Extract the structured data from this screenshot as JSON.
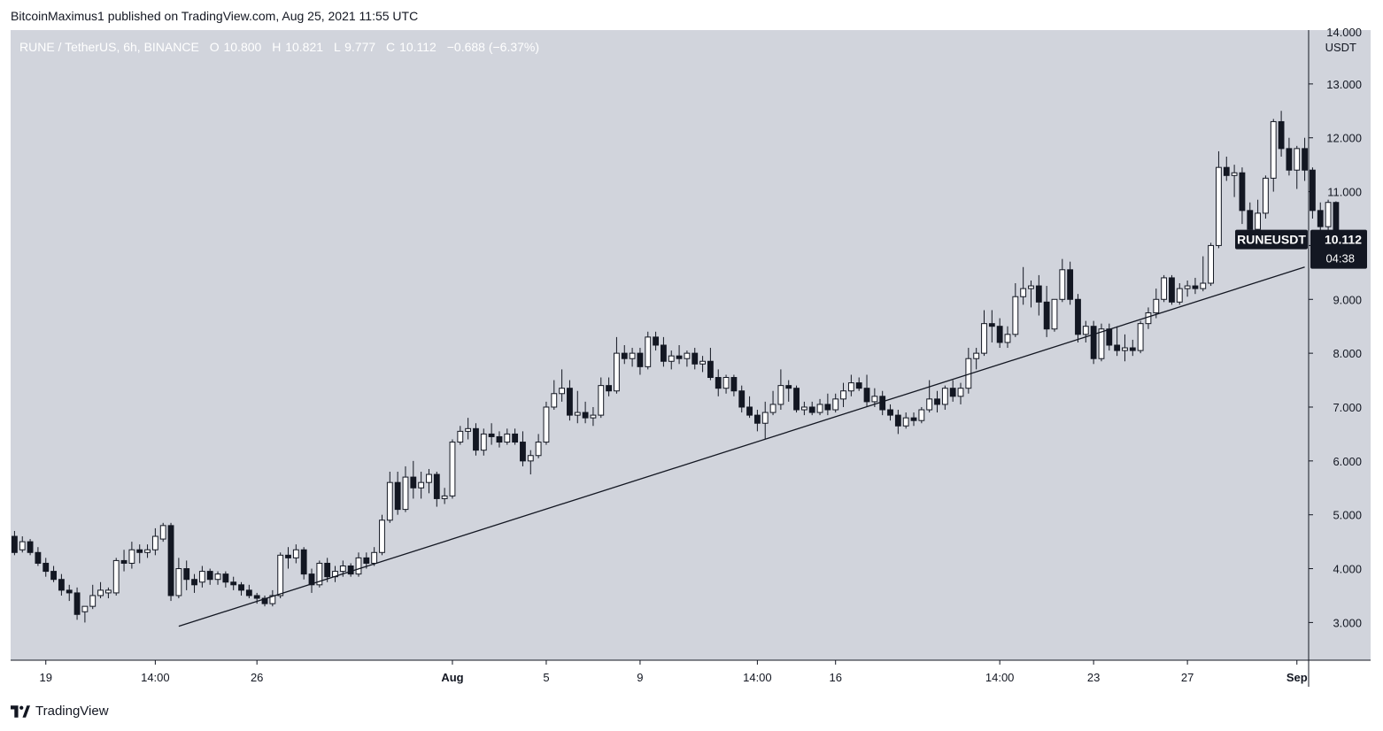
{
  "header": {
    "published_line": "BitcoinMaximus1 published on TradingView.com, Aug 25, 2021 11:55 UTC"
  },
  "legend": {
    "pair": "RUNE / TetherUS, 6h, BINANCE",
    "o_label": "O",
    "o_value": "10.800",
    "h_label": "H",
    "h_value": "10.821",
    "l_label": "L",
    "l_value": "9.777",
    "c_label": "C",
    "c_value": "10.112",
    "change": "−0.688 (−6.37%)"
  },
  "price_axis": {
    "currency": "USDT",
    "top_partial_label": "14.000"
  },
  "price_tag": {
    "symbol": "RUNEUSDT",
    "price": "10.112",
    "countdown": "04:38"
  },
  "footer": {
    "brand": "TradingView",
    "logo_icon": "tradingview-logo-icon"
  },
  "colors": {
    "plot_background": "#d1d4dc",
    "up_candle_fill": "#ffffff",
    "down_candle_fill": "#131722",
    "wick": "#131722",
    "trendline": "#131722",
    "price_tag_bg": "#131722"
  },
  "chart_data": {
    "type": "candlestick",
    "symbol": "RUNE / TetherUS",
    "interval": "6h",
    "exchange": "BINANCE",
    "ylim": [
      2.3,
      14.0
    ],
    "y_ticks": [
      "3.000",
      "4.000",
      "5.000",
      "6.000",
      "7.000",
      "8.000",
      "9.000",
      "10.000",
      "11.000",
      "12.000",
      "13.000"
    ],
    "x_ticks": [
      "19",
      "14:00",
      "26",
      "Aug",
      "5",
      "9",
      "14:00",
      "16",
      "14:00",
      "23",
      "27",
      "Sep"
    ],
    "x_tick_bars": [
      4,
      18,
      31,
      56,
      68,
      80,
      95,
      105,
      126,
      138,
      150,
      164
    ],
    "total_bar_slots": 166,
    "bold_ticks": [
      "Aug",
      "Sep"
    ],
    "grid": false,
    "candles": [
      {
        "o": 4.6,
        "h": 4.7,
        "l": 4.25,
        "c": 4.3
      },
      {
        "o": 4.35,
        "h": 4.6,
        "l": 4.3,
        "c": 4.5
      },
      {
        "o": 4.5,
        "h": 4.55,
        "l": 4.25,
        "c": 4.3
      },
      {
        "o": 4.3,
        "h": 4.4,
        "l": 4.05,
        "c": 4.1
      },
      {
        "o": 4.1,
        "h": 4.2,
        "l": 3.85,
        "c": 3.95
      },
      {
        "o": 3.95,
        "h": 4.05,
        "l": 3.75,
        "c": 3.8
      },
      {
        "o": 3.8,
        "h": 3.9,
        "l": 3.5,
        "c": 3.6
      },
      {
        "o": 3.6,
        "h": 3.7,
        "l": 3.4,
        "c": 3.55
      },
      {
        "o": 3.55,
        "h": 3.65,
        "l": 3.05,
        "c": 3.15
      },
      {
        "o": 3.2,
        "h": 3.3,
        "l": 3.0,
        "c": 3.3
      },
      {
        "o": 3.3,
        "h": 3.7,
        "l": 3.25,
        "c": 3.5
      },
      {
        "o": 3.5,
        "h": 3.75,
        "l": 3.45,
        "c": 3.6
      },
      {
        "o": 3.55,
        "h": 3.65,
        "l": 3.45,
        "c": 3.6
      },
      {
        "o": 3.55,
        "h": 4.2,
        "l": 3.5,
        "c": 4.15
      },
      {
        "o": 4.15,
        "h": 4.35,
        "l": 3.95,
        "c": 4.1
      },
      {
        "o": 4.1,
        "h": 4.5,
        "l": 4.0,
        "c": 4.35
      },
      {
        "o": 4.35,
        "h": 4.45,
        "l": 4.1,
        "c": 4.3
      },
      {
        "o": 4.3,
        "h": 4.45,
        "l": 4.2,
        "c": 4.35
      },
      {
        "o": 4.35,
        "h": 4.75,
        "l": 4.25,
        "c": 4.6
      },
      {
        "o": 4.55,
        "h": 4.85,
        "l": 4.5,
        "c": 4.8
      },
      {
        "o": 4.8,
        "h": 4.85,
        "l": 3.4,
        "c": 3.5
      },
      {
        "o": 3.5,
        "h": 4.2,
        "l": 3.45,
        "c": 4.0
      },
      {
        "o": 4.0,
        "h": 4.15,
        "l": 3.6,
        "c": 3.8
      },
      {
        "o": 3.8,
        "h": 3.9,
        "l": 3.55,
        "c": 3.7
      },
      {
        "o": 3.75,
        "h": 4.05,
        "l": 3.65,
        "c": 3.95
      },
      {
        "o": 3.95,
        "h": 4.0,
        "l": 3.7,
        "c": 3.8
      },
      {
        "o": 3.8,
        "h": 3.95,
        "l": 3.7,
        "c": 3.9
      },
      {
        "o": 3.9,
        "h": 3.95,
        "l": 3.65,
        "c": 3.75
      },
      {
        "o": 3.75,
        "h": 3.85,
        "l": 3.6,
        "c": 3.7
      },
      {
        "o": 3.7,
        "h": 3.75,
        "l": 3.5,
        "c": 3.6
      },
      {
        "o": 3.6,
        "h": 3.7,
        "l": 3.45,
        "c": 3.5
      },
      {
        "o": 3.5,
        "h": 3.55,
        "l": 3.35,
        "c": 3.45
      },
      {
        "o": 3.45,
        "h": 3.5,
        "l": 3.3,
        "c": 3.35
      },
      {
        "o": 3.35,
        "h": 3.6,
        "l": 3.3,
        "c": 3.5
      },
      {
        "o": 3.5,
        "h": 4.3,
        "l": 3.45,
        "c": 4.25
      },
      {
        "o": 4.25,
        "h": 4.4,
        "l": 4.0,
        "c": 4.2
      },
      {
        "o": 4.2,
        "h": 4.45,
        "l": 4.1,
        "c": 4.35
      },
      {
        "o": 4.35,
        "h": 4.4,
        "l": 3.8,
        "c": 3.9
      },
      {
        "o": 3.9,
        "h": 4.0,
        "l": 3.55,
        "c": 3.7
      },
      {
        "o": 3.7,
        "h": 4.15,
        "l": 3.65,
        "c": 4.1
      },
      {
        "o": 4.1,
        "h": 4.2,
        "l": 3.75,
        "c": 3.85
      },
      {
        "o": 3.85,
        "h": 4.05,
        "l": 3.75,
        "c": 3.95
      },
      {
        "o": 3.95,
        "h": 4.15,
        "l": 3.85,
        "c": 4.05
      },
      {
        "o": 4.05,
        "h": 4.1,
        "l": 3.85,
        "c": 3.9
      },
      {
        "o": 3.9,
        "h": 4.3,
        "l": 3.85,
        "c": 4.2
      },
      {
        "o": 4.2,
        "h": 4.3,
        "l": 4.0,
        "c": 4.1
      },
      {
        "o": 4.1,
        "h": 4.4,
        "l": 4.05,
        "c": 4.3
      },
      {
        "o": 4.3,
        "h": 5.0,
        "l": 4.25,
        "c": 4.9
      },
      {
        "o": 4.9,
        "h": 5.8,
        "l": 4.85,
        "c": 5.6
      },
      {
        "o": 5.6,
        "h": 5.8,
        "l": 5.0,
        "c": 5.1
      },
      {
        "o": 5.1,
        "h": 5.9,
        "l": 5.05,
        "c": 5.7
      },
      {
        "o": 5.7,
        "h": 6.0,
        "l": 5.3,
        "c": 5.5
      },
      {
        "o": 5.5,
        "h": 5.8,
        "l": 5.3,
        "c": 5.6
      },
      {
        "o": 5.6,
        "h": 5.85,
        "l": 5.4,
        "c": 5.75
      },
      {
        "o": 5.75,
        "h": 5.8,
        "l": 5.15,
        "c": 5.3
      },
      {
        "o": 5.3,
        "h": 5.5,
        "l": 5.2,
        "c": 5.35
      },
      {
        "o": 5.35,
        "h": 6.4,
        "l": 5.3,
        "c": 6.35
      },
      {
        "o": 6.35,
        "h": 6.65,
        "l": 6.3,
        "c": 6.55
      },
      {
        "o": 6.55,
        "h": 6.8,
        "l": 6.4,
        "c": 6.6
      },
      {
        "o": 6.6,
        "h": 6.7,
        "l": 6.1,
        "c": 6.2
      },
      {
        "o": 6.2,
        "h": 6.6,
        "l": 6.1,
        "c": 6.5
      },
      {
        "o": 6.5,
        "h": 6.7,
        "l": 6.3,
        "c": 6.45
      },
      {
        "o": 6.45,
        "h": 6.55,
        "l": 6.25,
        "c": 6.35
      },
      {
        "o": 6.35,
        "h": 6.6,
        "l": 6.3,
        "c": 6.5
      },
      {
        "o": 6.5,
        "h": 6.6,
        "l": 6.3,
        "c": 6.35
      },
      {
        "o": 6.35,
        "h": 6.55,
        "l": 5.9,
        "c": 6.0
      },
      {
        "o": 6.0,
        "h": 6.2,
        "l": 5.75,
        "c": 6.1
      },
      {
        "o": 6.1,
        "h": 6.5,
        "l": 6.05,
        "c": 6.35
      },
      {
        "o": 6.35,
        "h": 7.1,
        "l": 6.3,
        "c": 7.0
      },
      {
        "o": 7.0,
        "h": 7.5,
        "l": 6.95,
        "c": 7.25
      },
      {
        "o": 7.25,
        "h": 7.7,
        "l": 7.1,
        "c": 7.35
      },
      {
        "o": 7.35,
        "h": 7.5,
        "l": 6.75,
        "c": 6.85
      },
      {
        "o": 6.85,
        "h": 7.3,
        "l": 6.7,
        "c": 6.9
      },
      {
        "o": 6.9,
        "h": 7.1,
        "l": 6.7,
        "c": 6.8
      },
      {
        "o": 6.8,
        "h": 7.0,
        "l": 6.65,
        "c": 6.85
      },
      {
        "o": 6.85,
        "h": 7.55,
        "l": 6.8,
        "c": 7.4
      },
      {
        "o": 7.4,
        "h": 7.55,
        "l": 7.2,
        "c": 7.3
      },
      {
        "o": 7.3,
        "h": 8.3,
        "l": 7.25,
        "c": 8.0
      },
      {
        "o": 8.0,
        "h": 8.15,
        "l": 7.8,
        "c": 7.9
      },
      {
        "o": 7.9,
        "h": 8.1,
        "l": 7.75,
        "c": 8.0
      },
      {
        "o": 8.0,
        "h": 8.1,
        "l": 7.6,
        "c": 7.75
      },
      {
        "o": 7.75,
        "h": 8.4,
        "l": 7.7,
        "c": 8.3
      },
      {
        "o": 8.3,
        "h": 8.4,
        "l": 8.05,
        "c": 8.15
      },
      {
        "o": 8.15,
        "h": 8.3,
        "l": 7.75,
        "c": 7.85
      },
      {
        "o": 7.85,
        "h": 8.05,
        "l": 7.7,
        "c": 7.95
      },
      {
        "o": 7.95,
        "h": 8.15,
        "l": 7.8,
        "c": 7.9
      },
      {
        "o": 7.9,
        "h": 8.05,
        "l": 7.75,
        "c": 8.0
      },
      {
        "o": 8.0,
        "h": 8.1,
        "l": 7.7,
        "c": 7.8
      },
      {
        "o": 7.8,
        "h": 7.95,
        "l": 7.65,
        "c": 7.85
      },
      {
        "o": 7.85,
        "h": 8.1,
        "l": 7.5,
        "c": 7.55
      },
      {
        "o": 7.55,
        "h": 7.7,
        "l": 7.2,
        "c": 7.35
      },
      {
        "o": 7.35,
        "h": 7.6,
        "l": 7.25,
        "c": 7.55
      },
      {
        "o": 7.55,
        "h": 7.6,
        "l": 7.2,
        "c": 7.3
      },
      {
        "o": 7.3,
        "h": 7.4,
        "l": 6.9,
        "c": 7.0
      },
      {
        "o": 7.0,
        "h": 7.2,
        "l": 6.8,
        "c": 6.85
      },
      {
        "o": 6.85,
        "h": 6.95,
        "l": 6.55,
        "c": 6.7
      },
      {
        "o": 6.7,
        "h": 7.1,
        "l": 6.4,
        "c": 6.9
      },
      {
        "o": 6.9,
        "h": 7.3,
        "l": 6.85,
        "c": 7.05
      },
      {
        "o": 7.05,
        "h": 7.7,
        "l": 6.95,
        "c": 7.4
      },
      {
        "o": 7.4,
        "h": 7.5,
        "l": 7.1,
        "c": 7.35
      },
      {
        "o": 7.35,
        "h": 7.4,
        "l": 6.9,
        "c": 6.95
      },
      {
        "o": 6.95,
        "h": 7.1,
        "l": 6.85,
        "c": 7.0
      },
      {
        "o": 7.0,
        "h": 7.1,
        "l": 6.85,
        "c": 6.9
      },
      {
        "o": 6.9,
        "h": 7.15,
        "l": 6.85,
        "c": 7.05
      },
      {
        "o": 7.05,
        "h": 7.25,
        "l": 6.85,
        "c": 6.95
      },
      {
        "o": 6.95,
        "h": 7.25,
        "l": 6.9,
        "c": 7.15
      },
      {
        "o": 7.15,
        "h": 7.45,
        "l": 7.0,
        "c": 7.3
      },
      {
        "o": 7.3,
        "h": 7.6,
        "l": 7.2,
        "c": 7.45
      },
      {
        "o": 7.45,
        "h": 7.55,
        "l": 7.3,
        "c": 7.35
      },
      {
        "o": 7.35,
        "h": 7.6,
        "l": 7.0,
        "c": 7.1
      },
      {
        "o": 7.1,
        "h": 7.35,
        "l": 7.0,
        "c": 7.2
      },
      {
        "o": 7.2,
        "h": 7.3,
        "l": 6.85,
        "c": 6.95
      },
      {
        "o": 6.95,
        "h": 7.05,
        "l": 6.75,
        "c": 6.85
      },
      {
        "o": 6.85,
        "h": 6.95,
        "l": 6.5,
        "c": 6.65
      },
      {
        "o": 6.65,
        "h": 6.9,
        "l": 6.6,
        "c": 6.8
      },
      {
        "o": 6.8,
        "h": 6.9,
        "l": 6.65,
        "c": 6.75
      },
      {
        "o": 6.75,
        "h": 7.0,
        "l": 6.7,
        "c": 6.95
      },
      {
        "o": 6.95,
        "h": 7.5,
        "l": 6.9,
        "c": 7.15
      },
      {
        "o": 7.15,
        "h": 7.3,
        "l": 6.9,
        "c": 7.05
      },
      {
        "o": 7.05,
        "h": 7.4,
        "l": 6.95,
        "c": 7.35
      },
      {
        "o": 7.35,
        "h": 7.5,
        "l": 7.1,
        "c": 7.2
      },
      {
        "o": 7.2,
        "h": 7.45,
        "l": 7.05,
        "c": 7.35
      },
      {
        "o": 7.35,
        "h": 8.1,
        "l": 7.25,
        "c": 7.9
      },
      {
        "o": 7.9,
        "h": 8.1,
        "l": 7.7,
        "c": 8.0
      },
      {
        "o": 8.0,
        "h": 8.8,
        "l": 7.95,
        "c": 8.55
      },
      {
        "o": 8.55,
        "h": 8.8,
        "l": 8.2,
        "c": 8.5
      },
      {
        "o": 8.5,
        "h": 8.65,
        "l": 8.1,
        "c": 8.2
      },
      {
        "o": 8.2,
        "h": 8.5,
        "l": 8.1,
        "c": 8.35
      },
      {
        "o": 8.35,
        "h": 9.3,
        "l": 8.3,
        "c": 9.05
      },
      {
        "o": 9.05,
        "h": 9.6,
        "l": 8.9,
        "c": 9.2
      },
      {
        "o": 9.2,
        "h": 9.35,
        "l": 8.85,
        "c": 9.25
      },
      {
        "o": 9.25,
        "h": 9.45,
        "l": 8.7,
        "c": 8.95
      },
      {
        "o": 8.95,
        "h": 9.25,
        "l": 8.3,
        "c": 8.45
      },
      {
        "o": 8.45,
        "h": 9.0,
        "l": 8.4,
        "c": 9.0
      },
      {
        "o": 9.0,
        "h": 9.75,
        "l": 8.95,
        "c": 9.55
      },
      {
        "o": 9.55,
        "h": 9.7,
        "l": 8.9,
        "c": 9.0
      },
      {
        "o": 9.0,
        "h": 9.1,
        "l": 8.2,
        "c": 8.35
      },
      {
        "o": 8.35,
        "h": 8.6,
        "l": 8.2,
        "c": 8.5
      },
      {
        "o": 8.5,
        "h": 8.6,
        "l": 7.8,
        "c": 7.9
      },
      {
        "o": 7.9,
        "h": 8.55,
        "l": 7.85,
        "c": 8.45
      },
      {
        "o": 8.45,
        "h": 8.55,
        "l": 8.05,
        "c": 8.15
      },
      {
        "o": 8.15,
        "h": 8.5,
        "l": 7.95,
        "c": 8.05
      },
      {
        "o": 8.05,
        "h": 8.35,
        "l": 7.85,
        "c": 8.1
      },
      {
        "o": 8.1,
        "h": 8.25,
        "l": 7.95,
        "c": 8.05
      },
      {
        "o": 8.05,
        "h": 8.6,
        "l": 8.0,
        "c": 8.55
      },
      {
        "o": 8.55,
        "h": 8.85,
        "l": 8.45,
        "c": 8.75
      },
      {
        "o": 8.75,
        "h": 9.2,
        "l": 8.65,
        "c": 9.0
      },
      {
        "o": 9.0,
        "h": 9.45,
        "l": 8.95,
        "c": 9.4
      },
      {
        "o": 9.4,
        "h": 9.45,
        "l": 8.9,
        "c": 8.95
      },
      {
        "o": 8.95,
        "h": 9.3,
        "l": 8.9,
        "c": 9.2
      },
      {
        "o": 9.2,
        "h": 9.35,
        "l": 9.05,
        "c": 9.25
      },
      {
        "o": 9.25,
        "h": 9.4,
        "l": 9.1,
        "c": 9.2
      },
      {
        "o": 9.2,
        "h": 9.8,
        "l": 9.15,
        "c": 9.3
      },
      {
        "o": 9.3,
        "h": 10.05,
        "l": 9.25,
        "c": 10.0
      },
      {
        "o": 10.0,
        "h": 11.75,
        "l": 9.95,
        "c": 11.45
      },
      {
        "o": 11.45,
        "h": 11.65,
        "l": 11.2,
        "c": 11.3
      },
      {
        "o": 11.3,
        "h": 11.5,
        "l": 10.9,
        "c": 11.35
      },
      {
        "o": 11.35,
        "h": 11.45,
        "l": 10.4,
        "c": 10.65
      },
      {
        "o": 10.65,
        "h": 10.8,
        "l": 10.1,
        "c": 10.3
      },
      {
        "o": 10.3,
        "h": 10.85,
        "l": 10.1,
        "c": 10.6
      },
      {
        "o": 10.6,
        "h": 11.3,
        "l": 10.5,
        "c": 11.25
      },
      {
        "o": 11.25,
        "h": 12.35,
        "l": 11.0,
        "c": 12.3
      },
      {
        "o": 12.3,
        "h": 12.5,
        "l": 11.65,
        "c": 11.8
      },
      {
        "o": 11.8,
        "h": 12.0,
        "l": 11.3,
        "c": 11.4
      },
      {
        "o": 11.4,
        "h": 11.85,
        "l": 11.05,
        "c": 11.8
      },
      {
        "o": 11.8,
        "h": 12.0,
        "l": 11.2,
        "c": 11.4
      },
      {
        "o": 11.4,
        "h": 11.45,
        "l": 10.5,
        "c": 10.65
      },
      {
        "o": 10.65,
        "h": 10.8,
        "l": 10.25,
        "c": 10.35
      },
      {
        "o": 10.35,
        "h": 10.85,
        "l": 10.25,
        "c": 10.8
      },
      {
        "o": 10.8,
        "h": 10.821,
        "l": 9.777,
        "c": 10.112
      }
    ],
    "trendline": {
      "start_bar": 21,
      "start_price": 2.93,
      "end_bar": 165,
      "end_price": 9.6
    },
    "last_price": 10.112
  }
}
